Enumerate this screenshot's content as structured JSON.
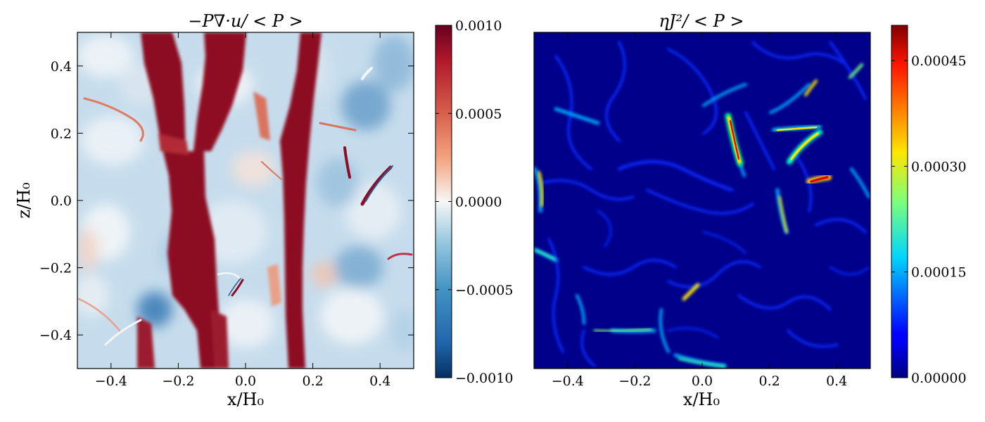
{
  "chart_data": [
    {
      "type": "heatmap",
      "title": "−P∇·u/ < P >",
      "xlabel": "x/H₀",
      "ylabel": "z/H₀",
      "xlim": [
        -0.5,
        0.5
      ],
      "ylim": [
        -0.5,
        0.5
      ],
      "xticks": [
        -0.4,
        -0.2,
        0.0,
        0.2,
        0.4
      ],
      "yticks": [
        -0.4,
        -0.2,
        0.0,
        0.2,
        0.4
      ],
      "xtick_labels": [
        "−0.4",
        "−0.2",
        "0.0",
        "0.2",
        "0.4"
      ],
      "ytick_labels": [
        "−0.4",
        "−0.2",
        "0.0",
        "0.2",
        "0.4"
      ],
      "colormap": "RdBu_r",
      "colorbar": {
        "range": [
          -0.001,
          0.001
        ],
        "ticks": [
          -0.001,
          -0.0005,
          0.0,
          0.0005,
          0.001
        ],
        "tick_labels": [
          "−0.0010",
          "−0.0005",
          "0.0000",
          "0.0005",
          "0.0010"
        ]
      },
      "features": [
        {
          "kind": "vertical-band",
          "x_center_top": -0.21,
          "x_center_bottom": -0.19,
          "width": 0.11,
          "value": 0.001
        },
        {
          "kind": "vertical-band",
          "x_center_top": 0.17,
          "x_center_bottom": 0.17,
          "width": 0.07,
          "value": 0.001
        }
      ]
    },
    {
      "type": "heatmap",
      "title": "ηJ²/ < P >",
      "xlabel": "x/H₀",
      "ylabel": "",
      "xlim": [
        -0.5,
        0.5
      ],
      "ylim": [
        -0.5,
        0.5
      ],
      "xticks": [
        -0.4,
        -0.2,
        0.0,
        0.2,
        0.4
      ],
      "xtick_labels": [
        "−0.4",
        "−0.2",
        "0.0",
        "0.2",
        "0.4"
      ],
      "colormap": "jet",
      "colorbar": {
        "range": [
          0.0,
          0.0005
        ],
        "ticks": [
          0.0,
          0.00015,
          0.0003,
          0.00045
        ],
        "tick_labels": [
          "0.00000",
          "0.00015",
          "0.00030",
          "0.00045"
        ]
      },
      "background_value": 0.0,
      "filaments": [
        {
          "x": [
            0.07,
            0.09,
            0.12
          ],
          "z": [
            0.28,
            0.18,
            0.08
          ],
          "value": 0.00048
        },
        {
          "x": [
            0.28,
            0.31,
            0.35
          ],
          "z": [
            0.15,
            0.18,
            0.21
          ],
          "value": 0.00033
        },
        {
          "x": [
            0.31,
            0.34,
            0.37
          ],
          "z": [
            0.06,
            0.07,
            0.09
          ],
          "value": 0.0005
        },
        {
          "x": [
            -0.48,
            -0.48,
            -0.47
          ],
          "z": [
            0.1,
            0.05,
            0.0
          ],
          "value": 0.00035
        },
        {
          "x": [
            -0.06,
            -0.02,
            0.0
          ],
          "z": [
            -0.31,
            -0.29,
            -0.27
          ],
          "value": 0.0003
        },
        {
          "x": [
            -0.3,
            -0.25,
            -0.16
          ],
          "z": [
            -0.39,
            -0.39,
            -0.38
          ],
          "value": 0.0002
        },
        {
          "x": [
            0.05,
            0.1,
            0.16
          ],
          "z": [
            -0.44,
            -0.46,
            -0.48
          ],
          "value": 0.00018
        },
        {
          "x": [
            0.37,
            0.4,
            0.44
          ],
          "z": [
            0.32,
            0.35,
            0.38
          ],
          "value": 0.00022
        },
        {
          "x": [
            0.18,
            0.2,
            0.23
          ],
          "z": [
            0.22,
            0.21,
            0.21
          ],
          "value": 0.0003
        }
      ]
    }
  ]
}
